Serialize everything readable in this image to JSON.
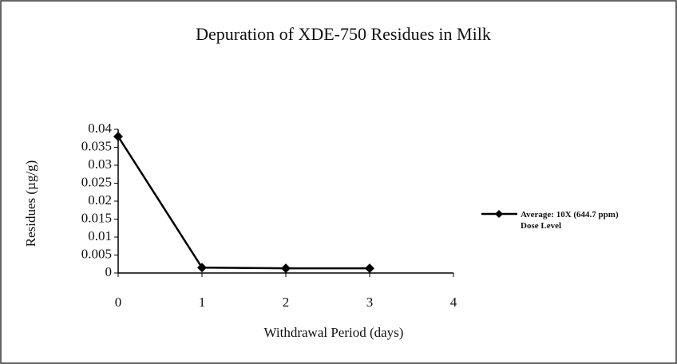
{
  "chart_data": {
    "type": "line",
    "title": "Depuration of XDE-750 Residues in Milk",
    "x_label": "Withdrawal Period (days)",
    "y_label": "Residues (µg/g)",
    "x": [
      0,
      1,
      2,
      3
    ],
    "series": [
      {
        "name": "Average: 10X (644.7 ppm) Dose Level",
        "color": "#000000",
        "values": [
          0.038,
          0.0015,
          0.0013,
          0.0013
        ]
      }
    ],
    "xlim": [
      0,
      4
    ],
    "xticks": [
      0,
      1,
      2,
      3,
      4
    ],
    "ylim": [
      0,
      0.04
    ],
    "yticks": [
      0,
      0.005,
      0.01,
      0.015,
      0.02,
      0.025,
      0.03,
      0.035,
      0.04
    ],
    "legend": "right"
  }
}
